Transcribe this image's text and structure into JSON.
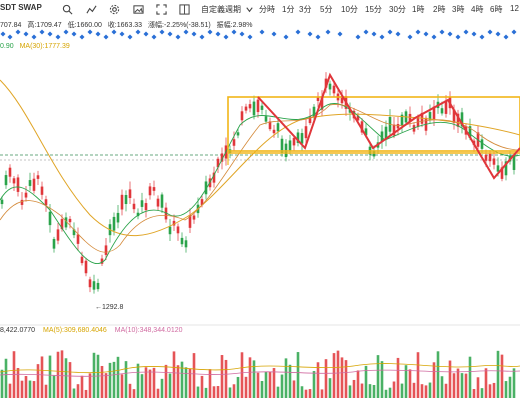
{
  "header": {
    "symbol": "SDT SWAP",
    "open_partial": "707.84",
    "high_label": "高:",
    "high_value": "1709.47",
    "low_label": "低:",
    "low_value": "1660.00",
    "close_label": "收:",
    "close_value": "1663.33",
    "change_label": "漲幅:",
    "change_value": "-2.25%(-38.51)",
    "amplitude_label": "振幅:",
    "amplitude_value": "2.98%"
  },
  "toolbar": {
    "custom_period": "自定義週期",
    "timeframes": [
      "分時",
      "1分",
      "3分",
      "5分",
      "10分",
      "15分",
      "30分",
      "1時",
      "2時",
      "3時",
      "4時",
      "6時",
      "12"
    ],
    "icons": [
      "search-icon",
      "chart-line-icon",
      "gear-icon",
      "image-icon",
      "fullscreen-icon",
      "dropdown-icon"
    ]
  },
  "ma_main": {
    "partial_value": "0.90",
    "ma30_label": "MA(30):1777.39"
  },
  "price_marker": {
    "low_label": "1292.8"
  },
  "volume": {
    "value_partial": "8,422.0770",
    "ma5_label": "MA(5):309,680.4046",
    "ma10_label": "MA(10):348,344.0120"
  },
  "colors": {
    "up": "#2aa34a",
    "down": "#e0363a",
    "box": "#f2b618",
    "pattern": "#e0363a",
    "ma_yellow": "#e0a526",
    "ma_green": "#2aa34a",
    "ma_orange": "#d48a3a",
    "diamond": "#2a6fd6"
  }
}
